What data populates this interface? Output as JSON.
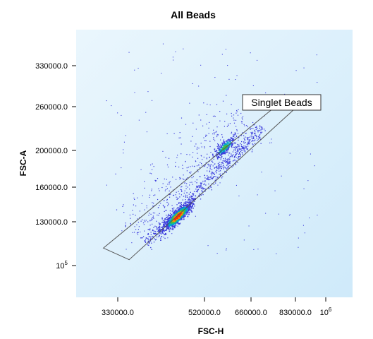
{
  "chart_data": {
    "type": "scatter",
    "title": "All Beads",
    "xlabel": "FSC-H",
    "ylabel": "FSC-A",
    "xlim": [
      200000,
      1100000
    ],
    "ylim": [
      70000,
      380000
    ],
    "x_ticks": [
      {
        "value": 330000,
        "label": "330000.0"
      },
      {
        "value": 520000,
        "label": "520000.0"
      },
      {
        "value": 660000,
        "label": "660000.0"
      },
      {
        "value": 830000,
        "label": "830000.0"
      },
      {
        "value": 1000000,
        "label": "10",
        "sup": "6"
      }
    ],
    "y_ticks": [
      {
        "value": 330000,
        "label": "330000.0"
      },
      {
        "value": 260000,
        "label": "260000.0"
      },
      {
        "value": 200000,
        "label": "200000.0"
      },
      {
        "value": 160000,
        "label": "160000.0"
      },
      {
        "value": 130000,
        "label": "130000.0"
      },
      {
        "value": 100000,
        "label": "10",
        "sup": "5"
      }
    ],
    "gate": {
      "name": "Singlet Beads",
      "polygon": [
        [
          285000,
          112000
        ],
        [
          355000,
          104000
        ],
        [
          830000,
          258000
        ],
        [
          780000,
          270000
        ]
      ]
    },
    "populations": [
      {
        "center": [
          460000,
          135000
        ],
        "density": "high"
      },
      {
        "center": [
          580000,
          205000
        ],
        "density": "medium"
      }
    ],
    "colors": {
      "plot_bg_start": "#eaf6fd",
      "plot_bg_end": "#cfeafa",
      "sparse": "#3c3cdc",
      "low": "#00a8c8",
      "medium": "#40c040",
      "high": "#ff2a00"
    }
  }
}
